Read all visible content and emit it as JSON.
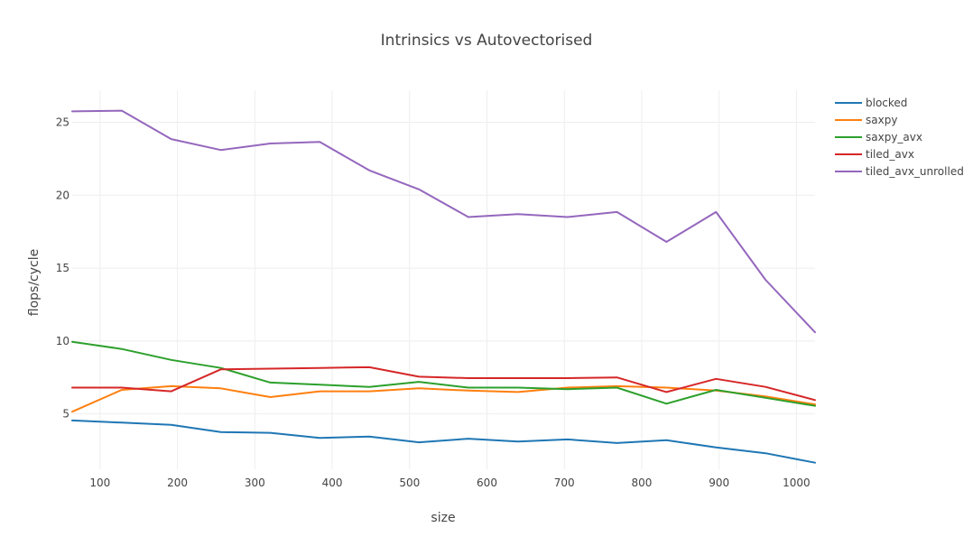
{
  "chart_data": {
    "type": "line",
    "title": "Intrinsics vs Autovectorised",
    "xlabel": "size",
    "ylabel": "flops/cycle",
    "xlim": [
      64,
      1024
    ],
    "ylim": [
      1.2,
      27.2
    ],
    "xticks": [
      100,
      200,
      300,
      400,
      500,
      600,
      700,
      800,
      900,
      1000
    ],
    "yticks": [
      5,
      10,
      15,
      20,
      25
    ],
    "grid": true,
    "legend_position": "top-right",
    "x": [
      64,
      128,
      192,
      256,
      320,
      384,
      448,
      512,
      576,
      640,
      704,
      768,
      832,
      896,
      960,
      1024
    ],
    "series": [
      {
        "name": "blocked",
        "color": "#1f77b4",
        "values": [
          4.55,
          4.4,
          4.25,
          3.75,
          3.7,
          3.35,
          3.45,
          3.05,
          3.3,
          3.1,
          3.25,
          3.0,
          3.2,
          2.7,
          2.3,
          1.65
        ]
      },
      {
        "name": "saxpy",
        "color": "#ff7f0e",
        "values": [
          5.15,
          6.65,
          6.9,
          6.75,
          6.15,
          6.55,
          6.55,
          6.75,
          6.6,
          6.5,
          6.8,
          6.9,
          6.8,
          6.6,
          6.2,
          5.65
        ]
      },
      {
        "name": "saxpy_avx",
        "color": "#2ca02c",
        "values": [
          9.95,
          9.45,
          8.7,
          8.15,
          7.15,
          7.0,
          6.85,
          7.2,
          6.8,
          6.8,
          6.7,
          6.8,
          5.7,
          6.65,
          6.1,
          5.55
        ]
      },
      {
        "name": "tiled_avx",
        "color": "#d62728",
        "values": [
          6.8,
          6.8,
          6.55,
          8.05,
          8.1,
          8.15,
          8.2,
          7.55,
          7.45,
          7.45,
          7.45,
          7.5,
          6.5,
          7.4,
          6.85,
          5.95
        ]
      },
      {
        "name": "tiled_avx_unrolled",
        "color": "#9467bd",
        "values": [
          25.75,
          25.8,
          23.85,
          23.1,
          23.55,
          23.65,
          21.7,
          20.4,
          18.5,
          18.7,
          18.5,
          18.85,
          16.8,
          18.85,
          14.2,
          10.6
        ]
      }
    ]
  }
}
